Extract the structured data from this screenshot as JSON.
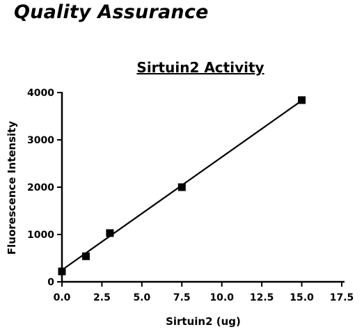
{
  "page": {
    "heading": "Quality Assurance"
  },
  "chart_data": {
    "type": "scatter",
    "title": "Sirtuin2 Activity",
    "xlabel": "Sirtuin2 (ug)",
    "ylabel": "Fluorescence Intensity",
    "xlim": [
      0,
      17.5
    ],
    "ylim": [
      0,
      4000
    ],
    "x_ticks": [
      "0.0",
      "2.5",
      "5.0",
      "7.5",
      "10.0",
      "12.5",
      "15.0",
      "17.5"
    ],
    "y_ticks": [
      "0",
      "1000",
      "2000",
      "3000",
      "4000"
    ],
    "grid": false,
    "legend": "none",
    "series": [
      {
        "x": [
          0,
          1.5,
          3,
          7.5,
          15
        ],
        "y": [
          220,
          540,
          1030,
          2000,
          3840
        ],
        "marker": "square",
        "color": "#000000"
      }
    ],
    "fit_line": {
      "x": [
        0,
        15
      ],
      "y": [
        250,
        3830
      ],
      "color": "#000000"
    }
  }
}
